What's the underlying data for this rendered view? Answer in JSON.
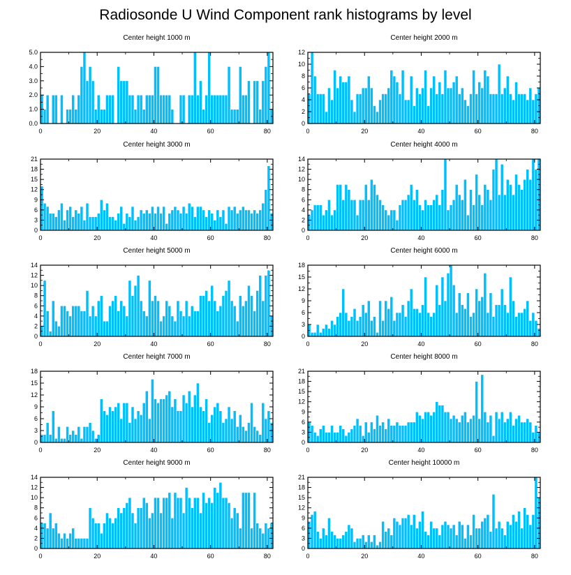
{
  "chart_data": {
    "type": "bar",
    "title": "Radiosonde U Wind Component rank histograms by level",
    "bar_color": "#00BFFF",
    "bar_edge_color": "#FFFFFF",
    "panels": [
      {
        "title": "Center height 1000 m",
        "ylim": [
          0,
          5
        ],
        "yticks": [
          0,
          1,
          2,
          3,
          4,
          5
        ],
        "ytick_labels": [
          "0.0",
          "1.0",
          "2.0",
          "3.0",
          "4.0",
          "5.0"
        ],
        "xlim": [
          0,
          82
        ],
        "xticks": [
          0,
          20,
          40,
          60,
          80
        ],
        "values": [
          2,
          1,
          2,
          0,
          2,
          2,
          0,
          2,
          0,
          1,
          1,
          2,
          1,
          2,
          4,
          5,
          3,
          4,
          3,
          1,
          2,
          1,
          1,
          2,
          2,
          2,
          0,
          4,
          3,
          3,
          3,
          2,
          2,
          1,
          2,
          2,
          1,
          2,
          2,
          2,
          4,
          4,
          2,
          2,
          2,
          2,
          1,
          0,
          0,
          2,
          2,
          0,
          2,
          2,
          5,
          2,
          3,
          1,
          2,
          5,
          2,
          2,
          2,
          2,
          2,
          2,
          4,
          1,
          1,
          1,
          4,
          2,
          2,
          3,
          0,
          3,
          3,
          1,
          3,
          4,
          5,
          1
        ]
      },
      {
        "title": "Center height 2000 m",
        "ylim": [
          0,
          12
        ],
        "yticks": [
          0,
          2,
          4,
          6,
          8,
          10,
          12
        ],
        "ytick_labels": [
          "0",
          "2",
          "4",
          "6",
          "8",
          "10",
          "12"
        ],
        "xlim": [
          0,
          82
        ],
        "xticks": [
          0,
          20,
          40,
          60,
          80
        ],
        "values": [
          5,
          12,
          8,
          5,
          5,
          5,
          2,
          6,
          4,
          9,
          6,
          8,
          7,
          7,
          8,
          4,
          2,
          5,
          5,
          6,
          6,
          8,
          6,
          3,
          2,
          4,
          5,
          5,
          6,
          9,
          8,
          7,
          5,
          9,
          4,
          4,
          8,
          3,
          6,
          5,
          6,
          9,
          3,
          6,
          8,
          5,
          7,
          5,
          9,
          6,
          6,
          7,
          8,
          5,
          6,
          4,
          3,
          5,
          9,
          5,
          7,
          6,
          9,
          8,
          5,
          5,
          5,
          10,
          5,
          6,
          8,
          5,
          4,
          7,
          5,
          5,
          5,
          4,
          6,
          4,
          5,
          6
        ]
      },
      {
        "title": "Center height 3000 m",
        "ylim": [
          0,
          21
        ],
        "yticks": [
          0,
          3,
          6,
          9,
          12,
          15,
          18,
          21
        ],
        "ytick_labels": [
          "0",
          "3",
          "6",
          "9",
          "12",
          "15",
          "18",
          "21"
        ],
        "xlim": [
          0,
          82
        ],
        "xticks": [
          0,
          20,
          40,
          60,
          80
        ],
        "values": [
          13,
          8,
          7,
          5,
          5,
          4,
          6,
          8,
          3,
          6,
          7,
          4,
          6,
          5,
          7,
          3,
          8,
          4,
          4,
          4,
          5,
          9,
          6,
          8,
          4,
          4,
          3,
          5,
          7,
          2,
          5,
          4,
          7,
          3,
          4,
          6,
          5,
          6,
          5,
          7,
          5,
          7,
          5,
          7,
          2,
          5,
          6,
          7,
          6,
          5,
          7,
          5,
          8,
          7,
          4,
          7,
          7,
          6,
          4,
          6,
          5,
          3,
          6,
          4,
          6,
          2,
          7,
          6,
          7,
          5,
          6,
          7,
          6,
          6,
          5,
          6,
          5,
          6,
          8,
          12,
          19,
          5
        ]
      },
      {
        "title": "Center height 4000 m",
        "ylim": [
          0,
          14
        ],
        "yticks": [
          0,
          2,
          4,
          6,
          8,
          10,
          12,
          14
        ],
        "ytick_labels": [
          "0",
          "2",
          "4",
          "6",
          "8",
          "10",
          "12",
          "14"
        ],
        "xlim": [
          0,
          82
        ],
        "xticks": [
          0,
          20,
          40,
          60,
          80
        ],
        "values": [
          3,
          4,
          5,
          5,
          5,
          3,
          4,
          6,
          3,
          4,
          9,
          9,
          6,
          9,
          8,
          6,
          6,
          3,
          6,
          6,
          9,
          6,
          10,
          9,
          7,
          6,
          5,
          4,
          3,
          4,
          4,
          2,
          5,
          6,
          6,
          7,
          9,
          6,
          8,
          5,
          4,
          6,
          5,
          5,
          6,
          7,
          5,
          8,
          14,
          4,
          5,
          6,
          9,
          7,
          6,
          10,
          3,
          8,
          5,
          11,
          7,
          5,
          9,
          8,
          6,
          12,
          14,
          7,
          13,
          7,
          10,
          9,
          7,
          11,
          9,
          8,
          10,
          12,
          10,
          14,
          12,
          14
        ]
      },
      {
        "title": "Center height 5000 m",
        "ylim": [
          0,
          14
        ],
        "yticks": [
          0,
          2,
          4,
          6,
          8,
          10,
          12,
          14
        ],
        "ytick_labels": [
          "0",
          "2",
          "4",
          "6",
          "8",
          "10",
          "12",
          "14"
        ],
        "xlim": [
          0,
          82
        ],
        "xticks": [
          0,
          20,
          40,
          60,
          80
        ],
        "values": [
          2,
          11,
          5,
          1,
          7,
          3,
          2,
          6,
          6,
          5,
          4,
          6,
          6,
          6,
          5,
          5,
          9,
          4,
          6,
          4,
          7,
          8,
          3,
          3,
          6,
          7,
          8,
          5,
          7,
          6,
          4,
          11,
          8,
          10,
          12,
          7,
          5,
          4,
          11,
          7,
          8,
          7,
          3,
          4,
          7,
          6,
          4,
          3,
          7,
          5,
          4,
          7,
          4,
          6,
          5,
          5,
          8,
          8,
          9,
          7,
          10,
          7,
          5,
          6,
          8,
          9,
          11,
          7,
          6,
          3,
          8,
          6,
          7,
          10,
          8,
          5,
          9,
          12,
          7,
          12,
          13,
          4
        ]
      },
      {
        "title": "Center height 6000 m",
        "ylim": [
          0,
          18
        ],
        "yticks": [
          0,
          3,
          6,
          9,
          12,
          15,
          18
        ],
        "ytick_labels": [
          "0",
          "3",
          "6",
          "9",
          "12",
          "15",
          "18"
        ],
        "xlim": [
          0,
          82
        ],
        "xticks": [
          0,
          20,
          40,
          60,
          80
        ],
        "values": [
          3,
          1,
          1,
          3,
          1,
          2,
          3,
          2,
          4,
          3,
          5,
          6,
          12,
          6,
          4,
          5,
          7,
          4,
          5,
          8,
          6,
          9,
          4,
          5,
          1,
          9,
          4,
          9,
          7,
          10,
          4,
          6,
          6,
          8,
          5,
          9,
          12,
          7,
          7,
          6,
          8,
          15,
          6,
          5,
          6,
          13,
          8,
          15,
          9,
          16,
          18,
          13,
          6,
          11,
          8,
          7,
          11,
          5,
          6,
          12,
          9,
          10,
          16,
          6,
          11,
          5,
          8,
          8,
          12,
          8,
          6,
          15,
          9,
          5,
          6,
          6,
          7,
          9,
          4,
          6,
          4,
          2
        ]
      },
      {
        "title": "Center height 7000 m",
        "ylim": [
          0,
          18
        ],
        "yticks": [
          0,
          3,
          6,
          9,
          12,
          15,
          18
        ],
        "ytick_labels": [
          "0",
          "3",
          "6",
          "9",
          "12",
          "15",
          "18"
        ],
        "xlim": [
          0,
          82
        ],
        "xticks": [
          0,
          20,
          40,
          60,
          80
        ],
        "values": [
          2,
          2,
          5,
          2,
          8,
          1,
          4,
          1,
          1,
          4,
          2,
          3,
          2,
          4,
          1,
          4,
          4,
          5,
          3,
          1,
          2,
          11,
          8,
          7,
          9,
          8,
          9,
          10,
          6,
          10,
          10,
          5,
          9,
          6,
          8,
          7,
          10,
          13,
          6,
          16,
          11,
          10,
          11,
          11,
          12,
          13,
          9,
          11,
          8,
          8,
          12,
          10,
          13,
          9,
          12,
          15,
          9,
          8,
          11,
          5,
          7,
          9,
          10,
          8,
          5,
          6,
          9,
          6,
          8,
          4,
          7,
          4,
          3,
          5,
          10,
          4,
          3,
          2,
          10,
          6,
          8,
          5
        ]
      },
      {
        "title": "Center height 8000 m",
        "ylim": [
          0,
          21
        ],
        "yticks": [
          0,
          3,
          6,
          9,
          12,
          15,
          18,
          21
        ],
        "ytick_labels": [
          "0",
          "3",
          "6",
          "9",
          "12",
          "15",
          "18",
          "21"
        ],
        "xlim": [
          0,
          82
        ],
        "xticks": [
          0,
          20,
          40,
          60,
          80
        ],
        "values": [
          6,
          5,
          3,
          2,
          4,
          5,
          3,
          3,
          5,
          3,
          3,
          5,
          4,
          2,
          3,
          4,
          5,
          7,
          5,
          2,
          6,
          3,
          6,
          4,
          8,
          5,
          6,
          4,
          7,
          5,
          5,
          6,
          5,
          5,
          5,
          6,
          6,
          6,
          9,
          8,
          7,
          9,
          9,
          8,
          9,
          12,
          11,
          11,
          9,
          9,
          7,
          8,
          7,
          6,
          8,
          9,
          6,
          7,
          8,
          18,
          7,
          20,
          9,
          6,
          8,
          2,
          9,
          7,
          9,
          6,
          7,
          9,
          5,
          7,
          8,
          6,
          6,
          7,
          6,
          3,
          5,
          3
        ]
      },
      {
        "title": "Center height 9000 m",
        "ylim": [
          0,
          14
        ],
        "yticks": [
          0,
          2,
          4,
          6,
          8,
          10,
          12,
          14
        ],
        "ytick_labels": [
          "0",
          "2",
          "4",
          "6",
          "8",
          "10",
          "12",
          "14"
        ],
        "xlim": [
          0,
          82
        ],
        "xticks": [
          0,
          20,
          40,
          60,
          80
        ],
        "values": [
          5,
          5,
          4,
          7,
          4,
          5,
          3,
          2,
          3,
          2,
          3,
          4,
          2,
          2,
          2,
          2,
          2,
          8,
          6,
          5,
          5,
          3,
          5,
          7,
          6,
          5,
          6,
          8,
          7,
          8,
          9,
          10,
          7,
          5,
          8,
          8,
          10,
          9,
          6,
          7,
          10,
          10,
          7,
          10,
          10,
          11,
          6,
          11,
          10,
          10,
          7,
          12,
          10,
          8,
          10,
          10,
          7,
          11,
          9,
          10,
          9,
          12,
          11,
          13,
          10,
          10,
          9,
          6,
          8,
          7,
          4,
          11,
          11,
          11,
          4,
          11,
          5,
          4,
          3,
          5,
          4,
          5
        ]
      },
      {
        "title": "Center height 10000 m",
        "ylim": [
          0,
          21
        ],
        "yticks": [
          0,
          3,
          6,
          9,
          12,
          15,
          18,
          21
        ],
        "ytick_labels": [
          "0",
          "3",
          "6",
          "9",
          "12",
          "15",
          "18",
          "21"
        ],
        "xlim": [
          0,
          82
        ],
        "xticks": [
          0,
          20,
          40,
          60,
          80
        ],
        "values": [
          8,
          10,
          11,
          5,
          3,
          6,
          4,
          9,
          5,
          4,
          3,
          3,
          4,
          5,
          7,
          6,
          2,
          3,
          3,
          4,
          2,
          4,
          2,
          4,
          1,
          2,
          8,
          5,
          6,
          4,
          9,
          8,
          7,
          9,
          9,
          10,
          7,
          10,
          6,
          8,
          11,
          5,
          4,
          8,
          6,
          6,
          4,
          7,
          8,
          7,
          6,
          7,
          4,
          8,
          7,
          3,
          7,
          4,
          10,
          6,
          6,
          8,
          9,
          10,
          5,
          16,
          6,
          8,
          6,
          4,
          8,
          7,
          10,
          8,
          11,
          6,
          12,
          10,
          7,
          10,
          21,
          15
        ]
      }
    ]
  }
}
